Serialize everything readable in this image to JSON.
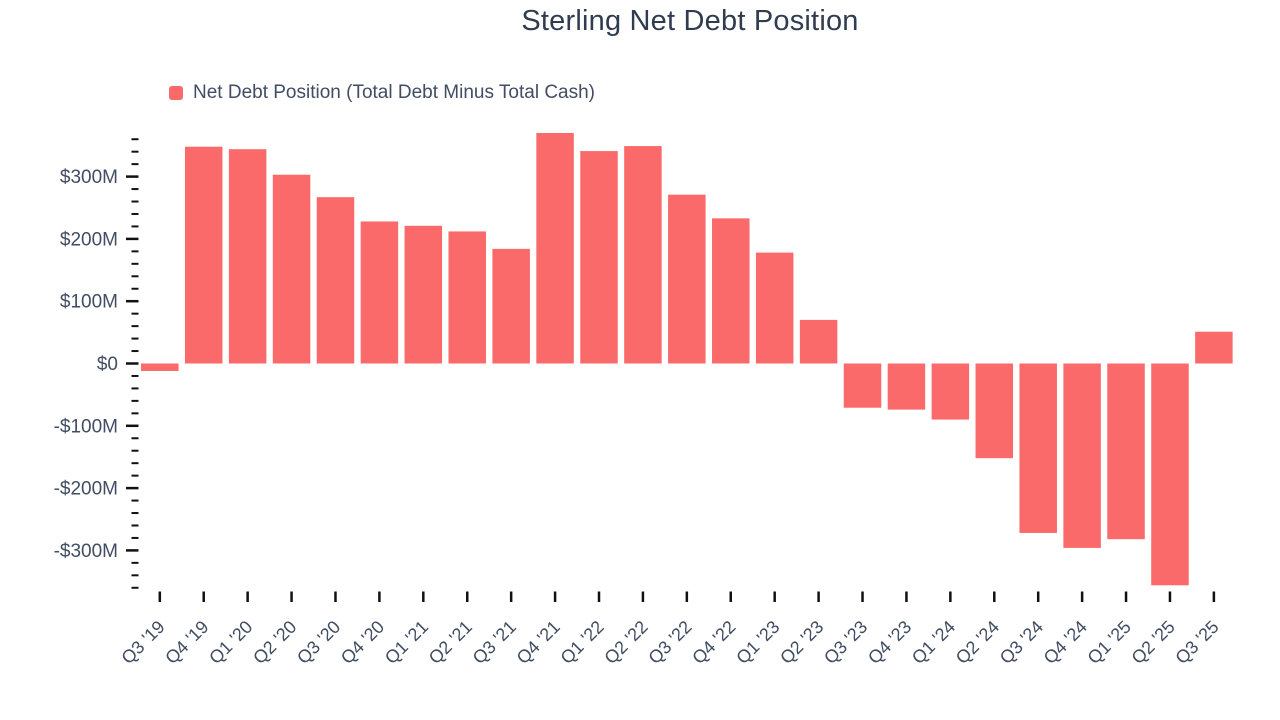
{
  "page": {
    "background": "#ffffff"
  },
  "header": {
    "title": "Sterling Net Debt Position",
    "legend": {
      "label": "Net Debt Position (Total Debt Minus Total Cash)"
    }
  },
  "colors": {
    "bar": "#fb6a6a",
    "title_text": "#303c4f",
    "axis_text": "#414d63",
    "tick": "#111111",
    "background": "#ffffff"
  },
  "chart_data": {
    "type": "bar",
    "title": "Sterling Net Debt Position",
    "legend_entries": [
      "Net Debt Position (Total Debt Minus Total Cash)"
    ],
    "legend_position": "top-left",
    "grid": false,
    "unit": "USD millions",
    "categories": [
      "Q3 '19",
      "Q4 '19",
      "Q1 '20",
      "Q2 '20",
      "Q3 '20",
      "Q4 '20",
      "Q1 '21",
      "Q2 '21",
      "Q3 '21",
      "Q4 '21",
      "Q1 '22",
      "Q2 '22",
      "Q3 '22",
      "Q4 '22",
      "Q1 '23",
      "Q2 '23",
      "Q3 '23",
      "Q4 '23",
      "Q1 '24",
      "Q2 '24",
      "Q3 '24",
      "Q4 '24",
      "Q1 '25",
      "Q2 '25",
      "Q3 '25"
    ],
    "series": [
      {
        "name": "Net Debt Position (Total Debt Minus Total Cash)",
        "values": [
          -12,
          348,
          344,
          303,
          267,
          228,
          221,
          212,
          184,
          370,
          341,
          349,
          271,
          233,
          178,
          70,
          -71,
          -74,
          -90,
          -152,
          -272,
          -296,
          -282,
          -356,
          51
        ]
      }
    ],
    "ylim": [
      -360,
      360
    ],
    "y_major_step": 100,
    "y_minor_step": 20,
    "y_tick_labels": [
      {
        "value": 300,
        "label": "$300M"
      },
      {
        "value": 200,
        "label": "$200M"
      },
      {
        "value": 100,
        "label": "$100M"
      },
      {
        "value": 0,
        "label": "$0"
      },
      {
        "value": -100,
        "label": "-$100M"
      },
      {
        "value": -200,
        "label": "-$200M"
      },
      {
        "value": -300,
        "label": "-$300M"
      }
    ]
  }
}
